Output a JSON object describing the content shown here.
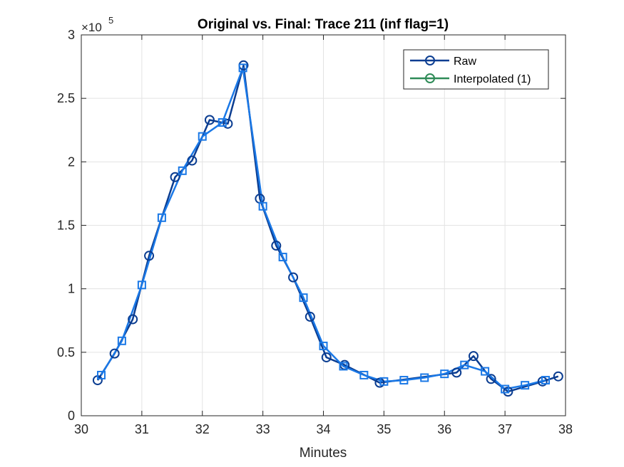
{
  "chart_data": {
    "type": "line",
    "title": "Original vs. Final: Trace 211 (inf flag=1)",
    "xlabel": "Minutes",
    "ylabel": "",
    "xlim": [
      30,
      38
    ],
    "ylim": [
      0,
      300000
    ],
    "x_ticks": [
      "30",
      "31",
      "32",
      "33",
      "34",
      "35",
      "36",
      "37",
      "38"
    ],
    "y_ticks": [
      "0",
      "0.5",
      "1",
      "1.5",
      "2",
      "2.5",
      "3"
    ],
    "y_exponent_label": "×10",
    "y_exponent_power": "5",
    "grid": true,
    "legend_position": "top-right",
    "series": [
      {
        "name": "Raw",
        "color": "#0b3d91",
        "marker": "circle",
        "x": [
          30.27,
          30.55,
          30.85,
          31.12,
          31.55,
          31.83,
          32.12,
          32.42,
          32.68,
          32.95,
          33.22,
          33.5,
          33.78,
          34.05,
          34.35,
          34.93,
          36.2,
          36.48,
          36.77,
          37.05,
          37.62,
          37.88
        ],
        "y": [
          28000,
          49000,
          76000,
          126000,
          188000,
          201000,
          233000,
          230000,
          276000,
          171000,
          134000,
          109000,
          78000,
          46000,
          40000,
          26000,
          34000,
          47000,
          29000,
          19000,
          27000,
          31000
        ]
      },
      {
        "name": "Interpolated (1)",
        "color": "#2e8b57",
        "marker": "circle",
        "x": [],
        "y": []
      },
      {
        "name": "",
        "color": "#1a78e6",
        "marker": "square",
        "x": [
          30.33,
          30.67,
          31.0,
          31.33,
          31.67,
          32.0,
          32.33,
          32.67,
          33.0,
          33.33,
          33.67,
          34.0,
          34.33,
          34.67,
          35.0,
          35.33,
          35.67,
          36.0,
          36.33,
          36.67,
          37.0,
          37.33,
          37.67
        ],
        "y": [
          32000,
          59000,
          103000,
          156000,
          193000,
          220000,
          231000,
          274000,
          165000,
          125000,
          93000,
          55000,
          39000,
          32000,
          27000,
          28000,
          30000,
          33000,
          40000,
          35000,
          21000,
          24000,
          28000
        ]
      }
    ]
  }
}
